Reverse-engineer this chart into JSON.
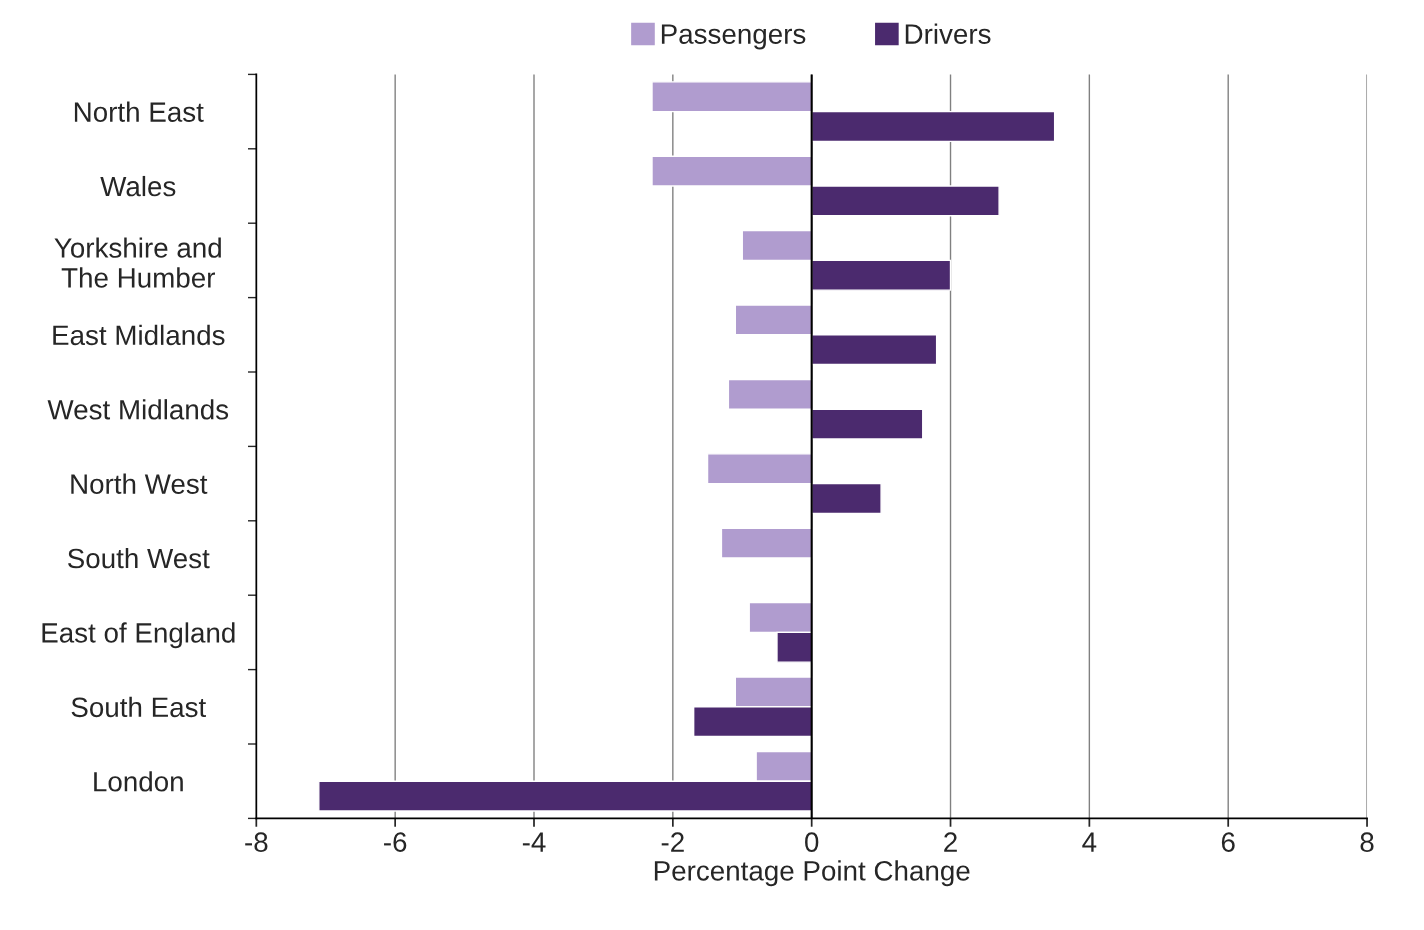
{
  "chart_data": {
    "type": "bar",
    "orientation": "horizontal",
    "xlabel": "Percentage Point Change",
    "categories": [
      "North East",
      "Wales",
      "Yorkshire and\nThe Humber",
      "East Midlands",
      "West Midlands",
      "North West",
      "South West",
      "East of England",
      "South East",
      "London"
    ],
    "series": [
      {
        "name": "Passengers",
        "color": "#b09ccf",
        "values": [
          -2.3,
          -2.3,
          -1.0,
          -1.1,
          -1.2,
          -1.5,
          -1.3,
          -0.9,
          -1.1,
          -0.8
        ]
      },
      {
        "name": "Drivers",
        "color": "#4b2a6e",
        "values": [
          3.5,
          2.7,
          2.0,
          1.8,
          1.6,
          1.0,
          null,
          -0.5,
          -1.7,
          -7.1
        ]
      }
    ],
    "xlim": [
      -8,
      8
    ],
    "xticks": [
      -8,
      -6,
      -4,
      -2,
      0,
      2,
      4,
      6,
      8
    ],
    "grid": "x",
    "legend": "top",
    "ref_lines": [
      {
        "axis": "x",
        "value": 0,
        "color": "#000000"
      }
    ]
  }
}
